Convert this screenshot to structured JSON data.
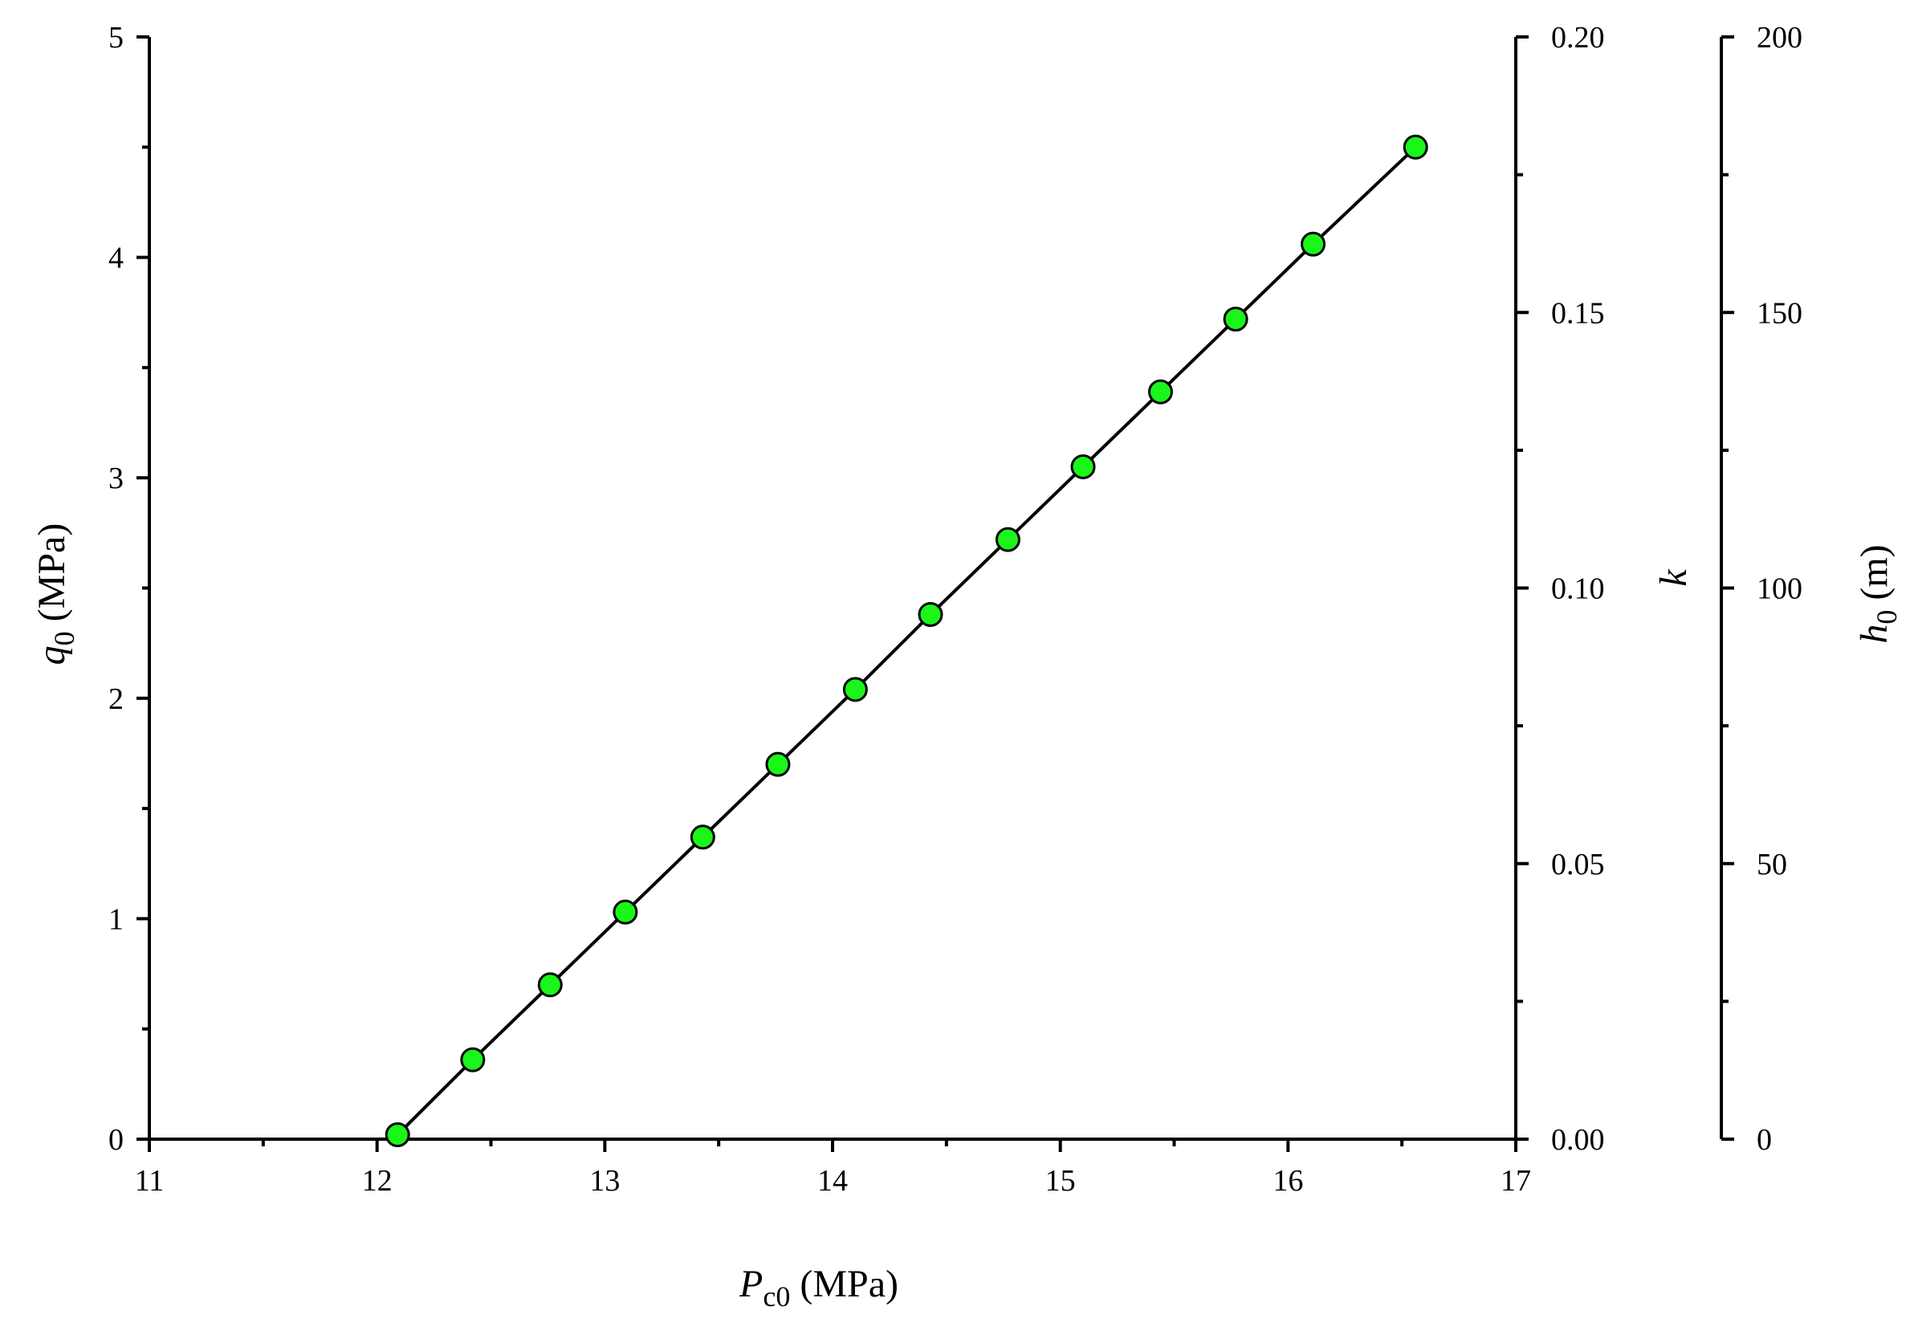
{
  "chart_data": {
    "type": "line",
    "title": "",
    "x_axis": {
      "label_main": "P",
      "label_sub": "c0",
      "label_unit": " (MPa)",
      "range": [
        11,
        17
      ],
      "ticks": [
        "11",
        "12",
        "13",
        "14",
        "15",
        "16",
        "17"
      ]
    },
    "y_axis_left": {
      "label_main": "q",
      "label_sub": "0",
      "label_unit": " (MPa)",
      "range": [
        0,
        5
      ],
      "ticks": [
        "0",
        "1",
        "2",
        "3",
        "4",
        "5"
      ]
    },
    "y_axis_right1": {
      "label_main": "k",
      "range": [
        0,
        0.2
      ],
      "ticks": [
        "0.00",
        "0.05",
        "0.10",
        "0.15",
        "0.20"
      ]
    },
    "y_axis_right2": {
      "label_main": "h",
      "label_sub": "0",
      "label_unit": " (m)",
      "range": [
        0,
        200
      ],
      "ticks": [
        "0",
        "50",
        "100",
        "150",
        "200"
      ]
    },
    "series": [
      {
        "marker_color": "#1AF51A",
        "x": [
          12.09,
          12.42,
          12.76,
          13.09,
          13.43,
          13.76,
          14.1,
          14.43,
          14.77,
          15.1,
          15.44,
          15.77,
          16.11,
          16.56
        ],
        "y": [
          0.02,
          0.36,
          0.7,
          1.03,
          1.37,
          1.7,
          2.04,
          2.38,
          2.72,
          3.05,
          3.39,
          3.72,
          4.06,
          4.5
        ]
      }
    ],
    "grid": false,
    "legend": "none"
  }
}
